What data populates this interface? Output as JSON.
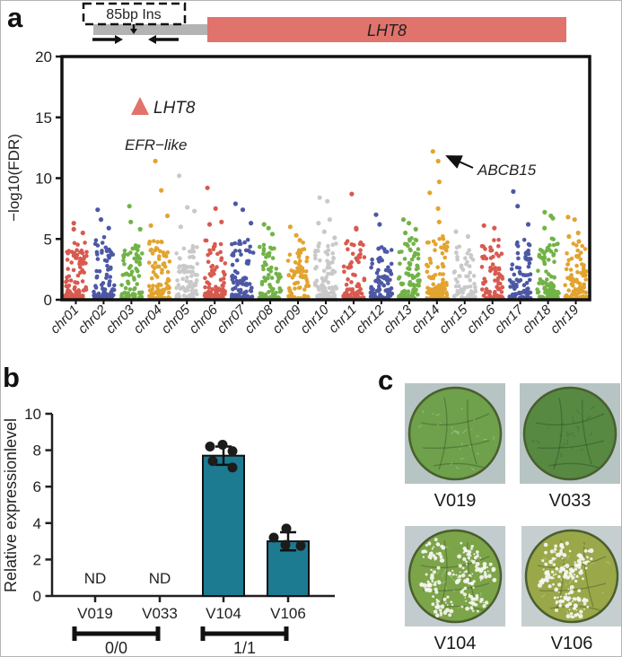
{
  "panels": {
    "a": "a",
    "b": "b",
    "c": "c"
  },
  "gene_diagram": {
    "insertion_label": "85bp Ins",
    "gene_label": "LHT8",
    "gene_bar_color": "#e0736b",
    "flank_bar_color": "#b3b3b3"
  },
  "chart_data": [
    {
      "type": "scatter",
      "subtype": "manhattan",
      "ylabel": "−log10(FDR)",
      "ylim": [
        0,
        20
      ],
      "yticks": [
        0,
        5,
        10,
        15,
        20
      ],
      "categories": [
        "chr01",
        "chr02",
        "chr03",
        "chr04",
        "chr05",
        "chr06",
        "chr07",
        "chr08",
        "chr09",
        "chr10",
        "chr11",
        "chr12",
        "chr13",
        "chr14",
        "chr15",
        "chr16",
        "chr17",
        "chr18",
        "chr19"
      ],
      "palette": [
        "#d85a4f",
        "#4d58a5",
        "#72b347",
        "#e2a42f",
        "#c9c9c9"
      ],
      "series": [
        {
          "name": "chr01",
          "color": "#d85a4f",
          "background_n": 90,
          "background_max": 4.6,
          "outliers": [
            6.3,
            5.8,
            5.5
          ]
        },
        {
          "name": "chr02",
          "color": "#4d58a5",
          "background_n": 85,
          "background_max": 4.8,
          "outliers": [
            7.4,
            6.6,
            5.9
          ]
        },
        {
          "name": "chr03",
          "color": "#72b347",
          "background_n": 72,
          "background_max": 4.4,
          "outliers": [
            7.7,
            6.4,
            5.8
          ]
        },
        {
          "name": "chr04",
          "color": "#e2a42f",
          "background_n": 82,
          "background_max": 4.7,
          "outliers": [
            11.4,
            9.0,
            6.9,
            6.1
          ]
        },
        {
          "name": "chr05",
          "color": "#c9c9c9",
          "background_n": 75,
          "background_max": 4.3,
          "outliers": [
            10.2,
            7.6,
            7.3,
            6.0
          ]
        },
        {
          "name": "chr06",
          "color": "#d85a4f",
          "background_n": 90,
          "background_max": 4.8,
          "outliers": [
            9.2,
            7.5,
            6.4,
            6.2
          ]
        },
        {
          "name": "chr07",
          "color": "#4d58a5",
          "background_n": 80,
          "background_max": 4.6,
          "outliers": [
            7.9,
            7.4,
            6.3
          ]
        },
        {
          "name": "chr08",
          "color": "#72b347",
          "background_n": 70,
          "background_max": 4.4,
          "outliers": [
            6.2,
            5.9,
            5.4
          ]
        },
        {
          "name": "chr09",
          "color": "#e2a42f",
          "background_n": 65,
          "background_max": 4.2,
          "outliers": [
            6.0,
            5.3,
            4.9
          ]
        },
        {
          "name": "chr10",
          "color": "#c9c9c9",
          "background_n": 85,
          "background_max": 4.5,
          "outliers": [
            8.4,
            8.1,
            6.6,
            6.3,
            5.6,
            5.1
          ]
        },
        {
          "name": "chr11",
          "color": "#d85a4f",
          "background_n": 75,
          "background_max": 4.6,
          "outliers": [
            8.7,
            5.9,
            5.8
          ]
        },
        {
          "name": "chr12",
          "color": "#4d58a5",
          "background_n": 80,
          "background_max": 4.5,
          "outliers": [
            7.0,
            6.2
          ]
        },
        {
          "name": "chr13",
          "color": "#72b347",
          "background_n": 85,
          "background_max": 4.9,
          "outliers": [
            6.6,
            6.3,
            5.8,
            5.5
          ]
        },
        {
          "name": "chr14",
          "color": "#e2a42f",
          "background_n": 95,
          "background_max": 4.9,
          "outliers": [
            12.2,
            11.4,
            9.7,
            8.8,
            7.5,
            6.4
          ]
        },
        {
          "name": "chr15",
          "color": "#c9c9c9",
          "background_n": 60,
          "background_max": 4.3,
          "outliers": [
            5.6,
            5.2
          ]
        },
        {
          "name": "chr16",
          "color": "#d85a4f",
          "background_n": 70,
          "background_max": 4.5,
          "outliers": [
            6.1,
            5.9
          ]
        },
        {
          "name": "chr17",
          "color": "#4d58a5",
          "background_n": 80,
          "background_max": 4.7,
          "outliers": [
            8.9,
            7.7,
            6.2
          ]
        },
        {
          "name": "chr18",
          "color": "#72b347",
          "background_n": 85,
          "background_max": 4.8,
          "outliers": [
            7.2,
            6.9,
            6.7,
            5.9
          ]
        },
        {
          "name": "chr19",
          "color": "#e2a42f",
          "background_n": 80,
          "background_max": 4.6,
          "outliers": [
            6.8,
            6.6,
            5.5,
            5.2,
            4.8
          ]
        }
      ],
      "annotations": [
        {
          "label": "LHT8",
          "marker": "triangle",
          "marker_color": "#e0736b",
          "value": 15.8
        },
        {
          "label": "EFR−like",
          "target": "chr04",
          "target_value": 11.4
        },
        {
          "label": "ABCB15",
          "target": "chr14",
          "target_value": 12.2,
          "arrow": true
        }
      ]
    },
    {
      "type": "bar",
      "categories": [
        "V019",
        "V033",
        "V104",
        "V106"
      ],
      "values": [
        null,
        null,
        7.7,
        3.0
      ],
      "nd": [
        true,
        true,
        false,
        false
      ],
      "nd_text": "ND",
      "error": [
        null,
        null,
        0.5,
        0.5
      ],
      "points": [
        [],
        [],
        [
          [
            -15,
            8.2
          ],
          [
            -1,
            8.3
          ],
          [
            10,
            7.95
          ],
          [
            -12,
            7.4
          ],
          [
            10,
            7.05
          ]
        ],
        [
          [
            -2,
            3.7
          ],
          [
            -16,
            3.2
          ],
          [
            -3,
            2.8
          ],
          [
            14,
            2.75
          ]
        ]
      ],
      "ylabel": "Relative expressionlevel",
      "ylim": [
        0,
        10
      ],
      "yticks": [
        0,
        2,
        4,
        6,
        8,
        10
      ],
      "bar_color": "#1c7b91",
      "groups": [
        {
          "label": "0/0",
          "span": [
            0,
            1
          ]
        },
        {
          "label": "1/1",
          "span": [
            2,
            3
          ]
        }
      ]
    }
  ],
  "leaf_assay": {
    "items": [
      {
        "label": "V019",
        "infected": false,
        "disc_color": "#6fa04b",
        "bg_color": "#b7c4c4"
      },
      {
        "label": "V033",
        "infected": false,
        "disc_color": "#578943",
        "bg_color": "#b7c4c4"
      },
      {
        "label": "V104",
        "infected": true,
        "disc_color": "#7ca449",
        "bg_color": "#c2ccce"
      },
      {
        "label": "V106",
        "infected": true,
        "disc_color": "#9aa84a",
        "bg_color": "#c6ced0"
      }
    ]
  }
}
